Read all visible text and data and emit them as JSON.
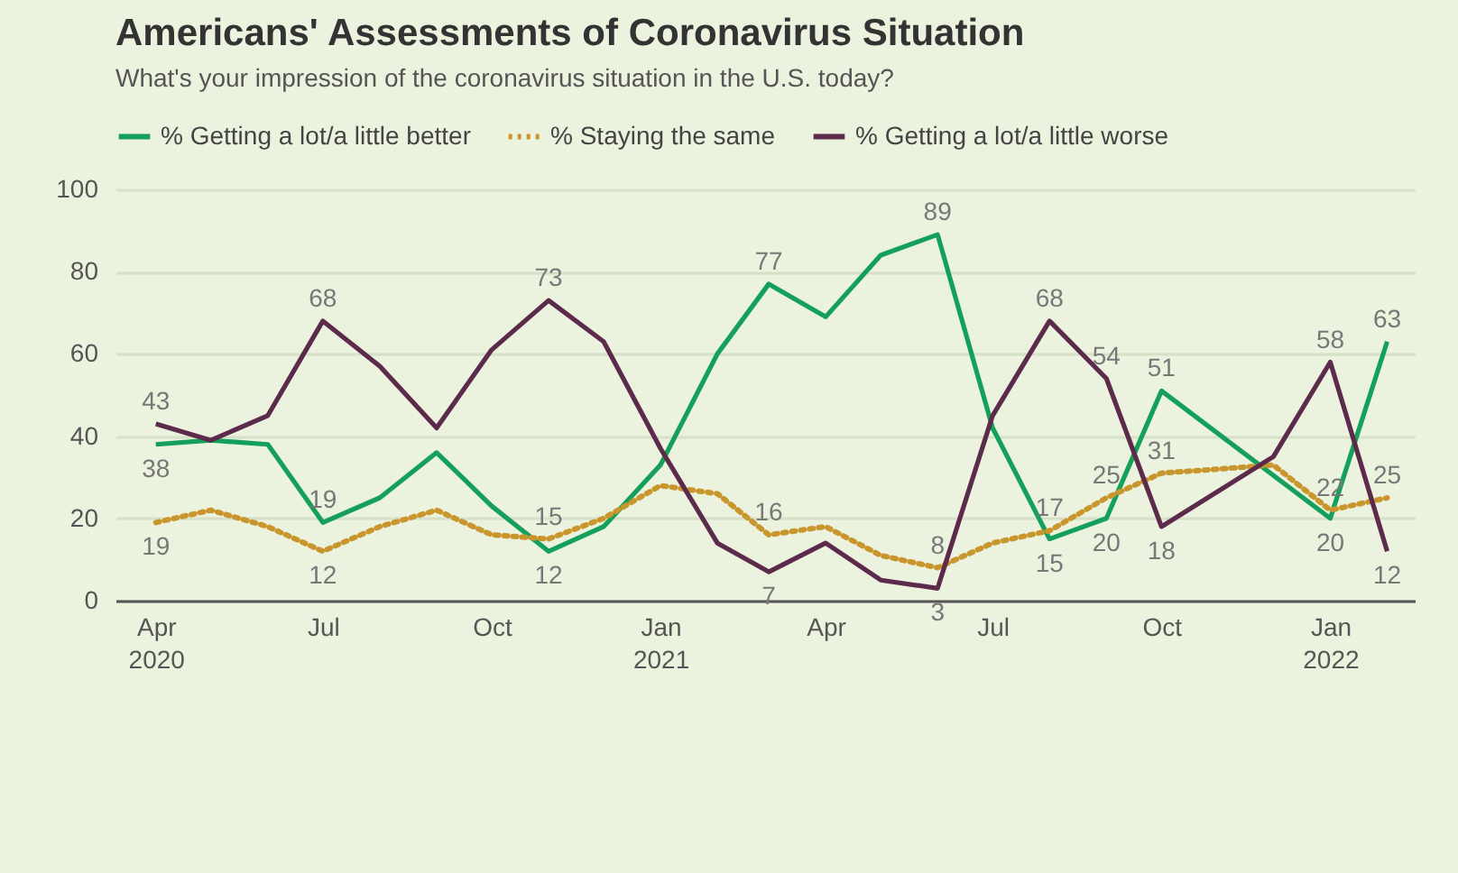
{
  "chart_data": {
    "type": "line",
    "title": "Americans' Assessments of Coronavirus Situation",
    "subtitle": "What's your impression of the coronavirus situation in the U.S. today?",
    "x": [
      "2020-04",
      "2020-05",
      "2020-06",
      "2020-07",
      "2020-08",
      "2020-09",
      "2020-10",
      "2020-11",
      "2020-12",
      "2021-01",
      "2021-02",
      "2021-03",
      "2021-04",
      "2021-05",
      "2021-06",
      "2021-07",
      "2021-08",
      "2021-09",
      "2021-10",
      "2021-11",
      "2021-12",
      "2022-01",
      "2022-02"
    ],
    "series": [
      {
        "name": "% Getting a lot/a little better",
        "color": "#14a05a",
        "line_style": "solid",
        "values": [
          38,
          39,
          38,
          19,
          25,
          36,
          23,
          12,
          18,
          33,
          60,
          77,
          69,
          84,
          89,
          42,
          15,
          20,
          51,
          null,
          null,
          20,
          63
        ],
        "value_labels": [
          "38",
          null,
          null,
          "19",
          null,
          null,
          null,
          "12",
          null,
          null,
          null,
          "77",
          null,
          null,
          "89",
          null,
          "15",
          "20",
          "51",
          null,
          null,
          "20",
          "63"
        ]
      },
      {
        "name": "% Staying the same",
        "color": "#c9962e",
        "line_style": "dotted",
        "values": [
          19,
          22,
          18,
          12,
          18,
          22,
          16,
          15,
          20,
          28,
          26,
          16,
          18,
          11,
          8,
          14,
          17,
          25,
          31,
          32,
          33,
          22,
          25
        ],
        "value_labels": [
          "19",
          null,
          null,
          "12",
          null,
          null,
          null,
          "15",
          null,
          null,
          null,
          "16",
          null,
          null,
          "8",
          null,
          "17",
          "25",
          "31",
          null,
          null,
          "22",
          "25"
        ]
      },
      {
        "name": "% Getting a lot/a little worse",
        "color": "#5c2a4a",
        "line_style": "solid",
        "values": [
          43,
          39,
          45,
          68,
          57,
          42,
          61,
          73,
          63,
          37,
          14,
          7,
          14,
          5,
          3,
          45,
          68,
          54,
          18,
          null,
          35,
          58,
          12
        ],
        "value_labels": [
          "43",
          null,
          null,
          "68",
          null,
          null,
          null,
          "73",
          null,
          null,
          null,
          "7",
          null,
          null,
          "3",
          null,
          "68",
          "54",
          "18",
          null,
          null,
          "58",
          "12"
        ]
      }
    ],
    "xlim": [
      "2020-03-10",
      "2022-02-16"
    ],
    "xticks": [
      {
        "value": "2020-04",
        "label": "Apr 2020"
      },
      {
        "value": "2020-07",
        "label": "Jul"
      },
      {
        "value": "2020-10",
        "label": "Oct"
      },
      {
        "value": "2021-01",
        "label": "Jan 2021"
      },
      {
        "value": "2021-04",
        "label": "Apr"
      },
      {
        "value": "2021-07",
        "label": "Jul"
      },
      {
        "value": "2021-10",
        "label": "Oct"
      },
      {
        "value": "2022-01",
        "label": "Jan 2022"
      }
    ],
    "ylim": [
      0,
      100
    ],
    "yticks": [
      0,
      20,
      40,
      60,
      80,
      100
    ],
    "grid": "y",
    "legend": "top left",
    "marker": "none"
  }
}
